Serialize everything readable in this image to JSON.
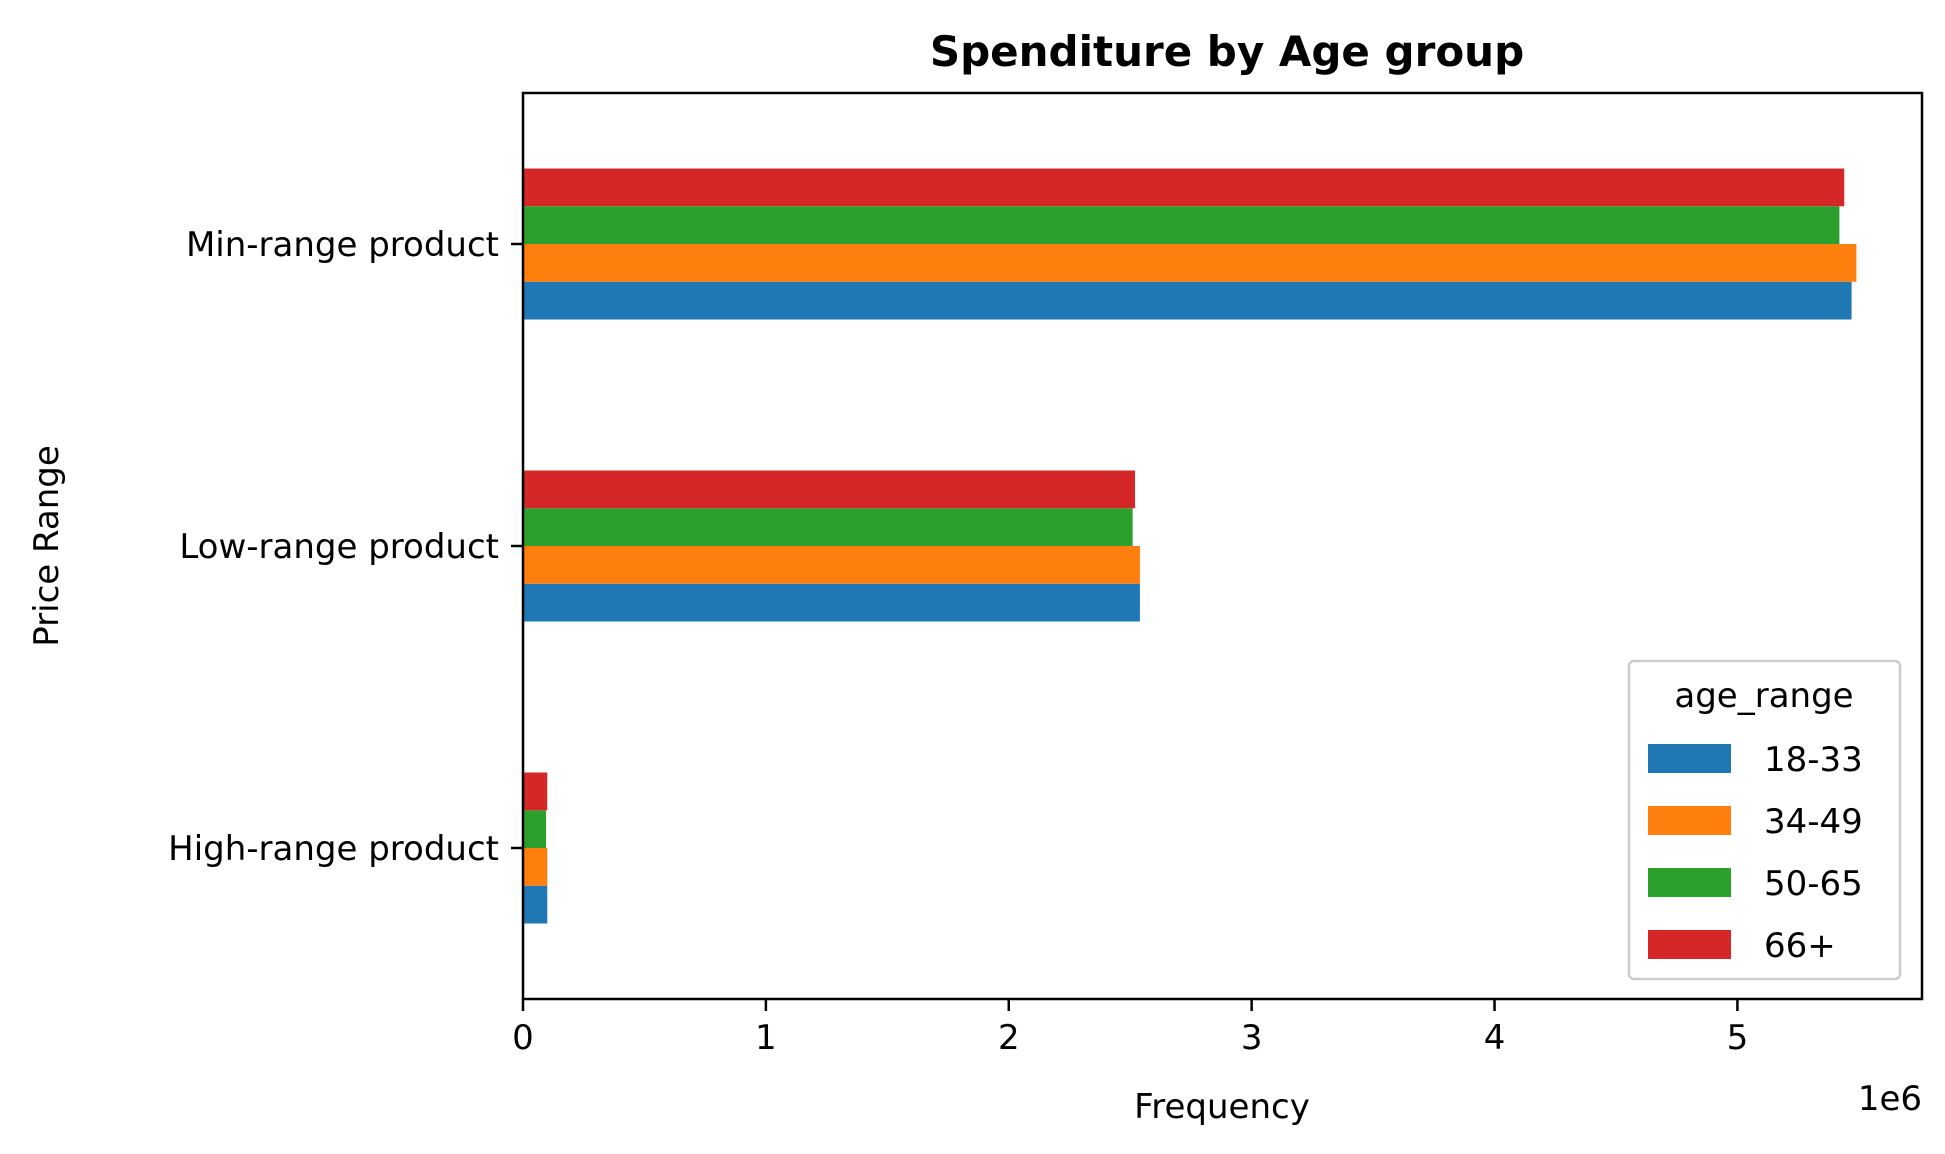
{
  "chart_data": {
    "type": "bar",
    "orientation": "horizontal",
    "title": "Spenditure by Age group",
    "xlabel": "Frequency",
    "ylabel": "Price Range",
    "x_scale_label": "1e6",
    "xlim": [
      0,
      5.76
    ],
    "x_ticks": [
      0,
      1,
      2,
      3,
      4,
      5
    ],
    "categories": [
      "High-range product",
      "Low-range product",
      "Min-range product"
    ],
    "series": [
      {
        "name": "18-33",
        "color": "#1f77b4",
        "values": [
          0.1,
          2.54,
          5.47
        ]
      },
      {
        "name": "34-49",
        "color": "#ff7f0e",
        "values": [
          0.1,
          2.54,
          5.49
        ]
      },
      {
        "name": "50-65",
        "color": "#2ca02c",
        "values": [
          0.095,
          2.51,
          5.42
        ]
      },
      {
        "name": "66+",
        "color": "#d62728",
        "values": [
          0.1,
          2.52,
          5.44
        ]
      }
    ],
    "legend": {
      "title": "age_range",
      "placement": "lower right"
    },
    "grid": false
  }
}
